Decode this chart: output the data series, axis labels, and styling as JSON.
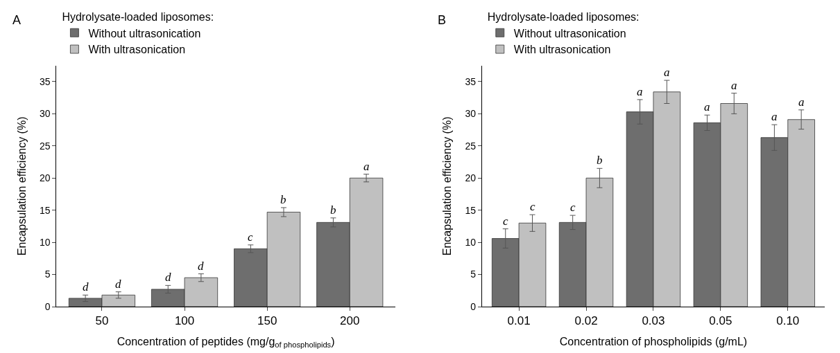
{
  "chart_data": [
    {
      "type": "bar",
      "title": "A",
      "xlabel": "Concentration of peptides (mg/g$_{of phospholipids}$)",
      "ylabel": "Encapsulation efficiency (%)",
      "legend_title": "Hydrolysate-loaded liposomes:",
      "legend": "top left",
      "categories": [
        "50",
        "100",
        "150",
        "200"
      ],
      "ylim": [
        0,
        37.5
      ],
      "yticks": [
        0,
        5,
        10,
        15,
        20,
        25,
        30,
        35
      ],
      "series": [
        {
          "name": "Without ultrasonication",
          "color": "#6e6e6e",
          "values": [
            1.3,
            2.7,
            9.0,
            13.1
          ],
          "errors": [
            0.5,
            0.6,
            0.6,
            0.7
          ],
          "value_labels": [
            "d",
            "d",
            "c",
            "b"
          ]
        },
        {
          "name": "With ultrasonication",
          "color": "#c0c0c0",
          "values": [
            1.8,
            4.5,
            14.7,
            20.0
          ],
          "errors": [
            0.5,
            0.6,
            0.7,
            0.6
          ],
          "value_labels": [
            "d",
            "d",
            "b",
            "a"
          ]
        }
      ]
    },
    {
      "type": "bar",
      "title": "B",
      "xlabel": "Concentration of phospholipids (g/mL)",
      "ylabel": "Encapsulation efficiency (%)",
      "legend_title": "Hydrolysate-loaded liposomes:",
      "legend": "top left",
      "categories": [
        "0.01",
        "0.02",
        "0.03",
        "0.05",
        "0.10"
      ],
      "ylim": [
        0,
        37.5
      ],
      "yticks": [
        0,
        5,
        10,
        15,
        20,
        25,
        30,
        35
      ],
      "series": [
        {
          "name": "Without ultrasonication",
          "color": "#6e6e6e",
          "values": [
            10.6,
            13.1,
            30.3,
            28.6,
            26.3
          ],
          "errors": [
            1.5,
            1.1,
            1.9,
            1.2,
            2.0
          ],
          "value_labels": [
            "c",
            "c",
            "a",
            "a",
            "a"
          ]
        },
        {
          "name": "With ultrasonication",
          "color": "#c0c0c0",
          "values": [
            13.0,
            20.0,
            33.4,
            31.6,
            29.1
          ],
          "errors": [
            1.3,
            1.5,
            1.8,
            1.6,
            1.5
          ],
          "value_labels": [
            "c",
            "b",
            "a",
            "a",
            "a"
          ]
        }
      ]
    }
  ]
}
